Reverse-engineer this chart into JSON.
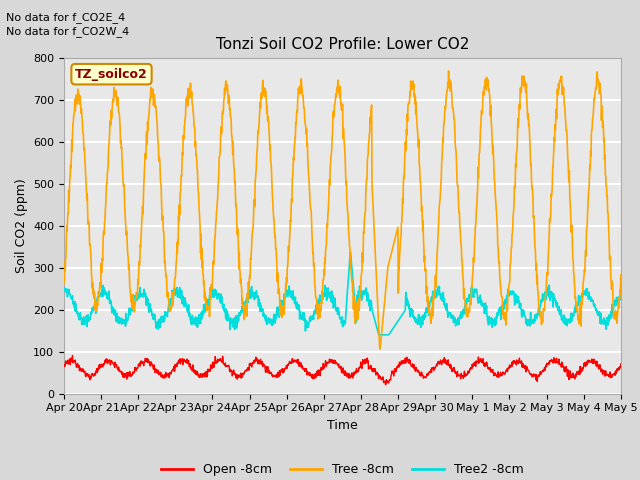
{
  "title": "Tonzi Soil CO2 Profile: Lower CO2",
  "ylabel": "Soil CO2 (ppm)",
  "xlabel": "Time",
  "annotation1": "No data for f_CO2E_4",
  "annotation2": "No data for f_CO2W_4",
  "legend_box_label": "TZ_soilco2",
  "ylim": [
    0,
    800
  ],
  "series": {
    "Open -8cm": {
      "color": "#ff0000",
      "lw": 1.0
    },
    "Tree -8cm": {
      "color": "#ffa500",
      "lw": 1.2
    },
    "Tree2 -8cm": {
      "color": "#00dddd",
      "lw": 1.2
    }
  },
  "fig_bg_color": "#d8d8d8",
  "plot_bg_color": "#e8e8e8",
  "grid_color": "#ffffff",
  "tick_labels": [
    "Apr 20",
    "Apr 21",
    "Apr 22",
    "Apr 23",
    "Apr 24",
    "Apr 25",
    "Apr 26",
    "Apr 27",
    "Apr 28",
    "Apr 29",
    "Apr 30",
    "May 1",
    "May 2",
    "May 3",
    "May 4",
    "May 5"
  ],
  "title_fontsize": 11,
  "label_fontsize": 9,
  "tick_fontsize": 8
}
